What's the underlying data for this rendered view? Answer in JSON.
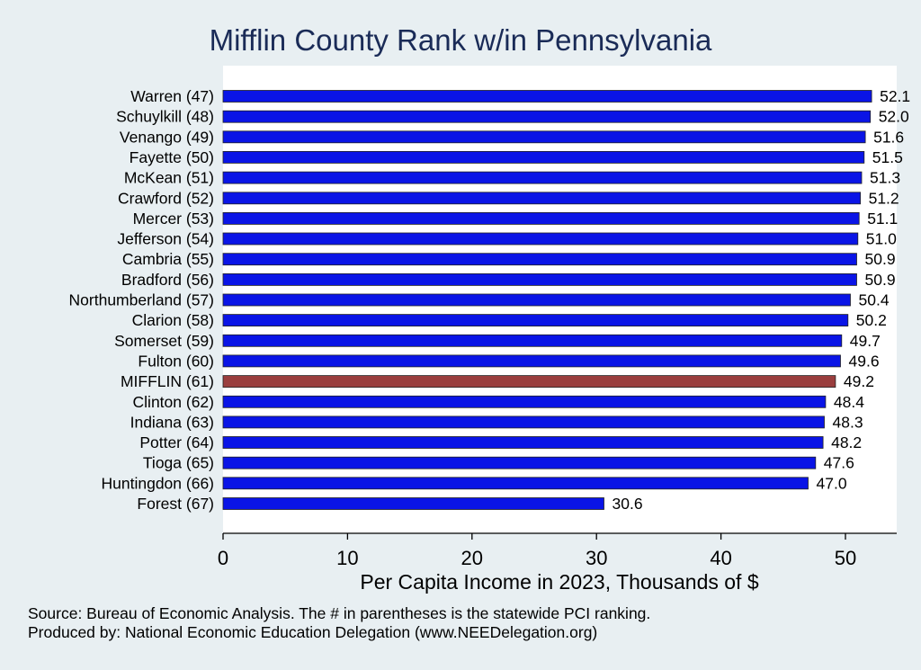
{
  "chart_data": {
    "type": "bar",
    "orientation": "horizontal",
    "title": "Mifflin County Rank w/in Pennsylvania",
    "xlabel": "Per Capita Income in 2023, Thousands of $",
    "ylabel": "",
    "xlim": [
      0,
      54
    ],
    "xticks": [
      0,
      10,
      20,
      30,
      40,
      50
    ],
    "grid": false,
    "highlight": "MIFFLIN (61)",
    "categories": [
      "Warren (47)",
      "Schuylkill (48)",
      "Venango (49)",
      "Fayette (50)",
      "McKean (51)",
      "Crawford (52)",
      "Mercer (53)",
      "Jefferson (54)",
      "Cambria (55)",
      "Bradford (56)",
      "Northumberland (57)",
      "Clarion (58)",
      "Somerset (59)",
      "Fulton (60)",
      "MIFFLIN (61)",
      "Clinton (62)",
      "Indiana (63)",
      "Potter (64)",
      "Tioga (65)",
      "Huntingdon (66)",
      "Forest (67)"
    ],
    "values": [
      52.1,
      52.0,
      51.6,
      51.5,
      51.3,
      51.2,
      51.1,
      51.0,
      50.9,
      50.9,
      50.4,
      50.2,
      49.7,
      49.6,
      49.2,
      48.4,
      48.3,
      48.2,
      47.6,
      47.0,
      30.6
    ],
    "value_labels": [
      "52.1",
      "52.0",
      "51.6",
      "51.5",
      "51.3",
      "51.2",
      "51.1",
      "51.0",
      "50.9",
      "50.9",
      "50.4",
      "50.2",
      "49.7",
      "49.6",
      "49.2",
      "48.4",
      "48.3",
      "48.2",
      "47.6",
      "47.0",
      "30.6"
    ]
  },
  "colors": {
    "bar": "#0a14e6",
    "highlight_bar": "#9a3e3e",
    "plot_background": "#ffffff",
    "page_background": "#e8eff2",
    "title": "#1a2b57"
  },
  "source_lines": [
    "Source: Bureau of Economic Analysis. The # in parentheses is the statewide PCI ranking.",
    "Produced by: National Economic Education Delegation (www.NEEDelegation.org)"
  ]
}
